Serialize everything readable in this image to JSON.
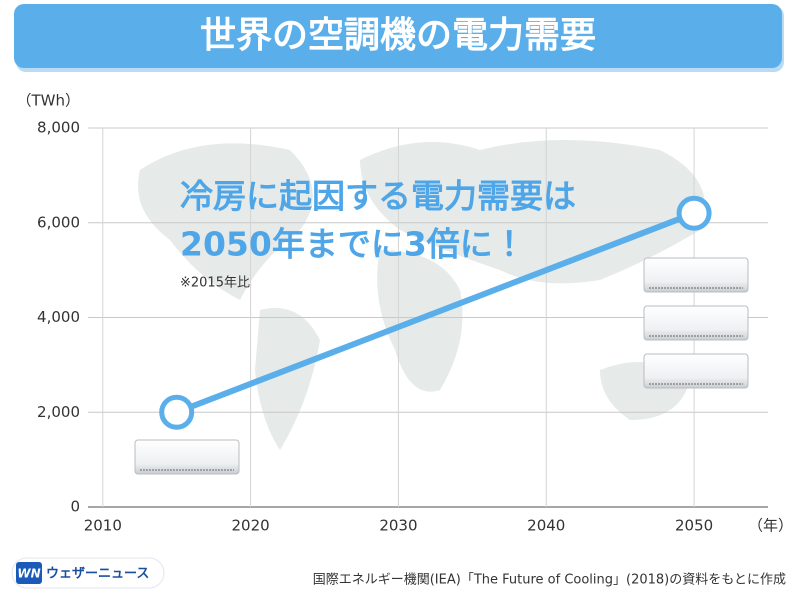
{
  "chart_data": {
    "type": "line",
    "title": "世界の空調機の電力需要",
    "y_label": "（TWh）",
    "x_label": "（年）",
    "x": [
      2015,
      2050
    ],
    "series": [
      {
        "color": "#5aaeea",
        "values": [
          2000,
          6200
        ]
      }
    ],
    "xlim": [
      2009,
      2055
    ],
    "xticks": [
      2010,
      2020,
      2030,
      2040,
      2050
    ],
    "ylim": [
      0,
      8000
    ],
    "yticks": [
      0,
      {
        "value": 2000,
        "label": "2,000"
      },
      {
        "value": 4000,
        "label": "4,000"
      },
      {
        "value": 6000,
        "label": "6,000"
      },
      {
        "value": 8000,
        "label": "8,000"
      }
    ],
    "grid": true,
    "annotations": [
      "冷房に起因する電力需要は",
      "2050年までに3倍に！",
      "※2015年比"
    ]
  },
  "source": "国際エネルギー機関(IEA)「The Future of Cooling」(2018)の資料をもとに作成",
  "logo": "ウェザーニュース"
}
